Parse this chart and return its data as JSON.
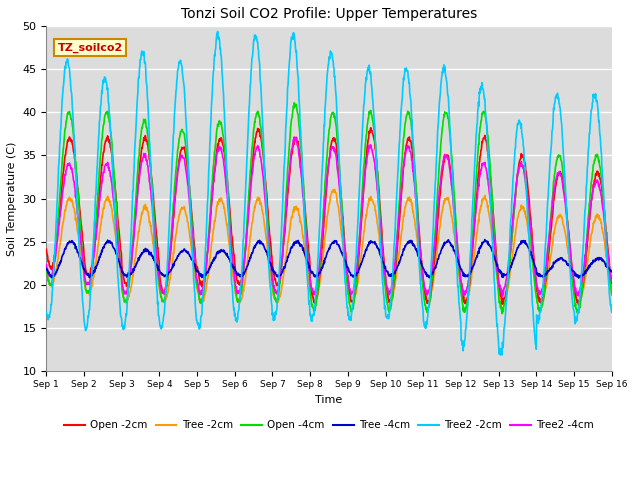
{
  "title": "Tonzi Soil CO2 Profile: Upper Temperatures",
  "xlabel": "Time",
  "ylabel": "Soil Temperature (C)",
  "ylim": [
    10,
    50
  ],
  "xlim": [
    0,
    15
  ],
  "background_color": "#dcdcdc",
  "fig_background": "#ffffff",
  "grid_color": "#ffffff",
  "label_box_text": "TZ_soilco2",
  "label_box_facecolor": "#ffffcc",
  "label_box_edgecolor": "#cc8800",
  "label_box_textcolor": "#cc0000",
  "xtick_labels": [
    "Sep 1",
    "Sep 2",
    "Sep 3",
    "Sep 4",
    "Sep 5",
    "Sep 6",
    "Sep 7",
    "Sep 8",
    "Sep 9",
    "Sep 10",
    "Sep 11",
    "Sep 12",
    "Sep 13",
    "Sep 14",
    "Sep 15",
    "Sep 16"
  ],
  "series": {
    "Open -2cm": {
      "color": "#ff0000",
      "lw": 1.2
    },
    "Tree -2cm": {
      "color": "#ff9900",
      "lw": 1.2
    },
    "Open -4cm": {
      "color": "#00dd00",
      "lw": 1.2
    },
    "Tree -4cm": {
      "color": "#0000cc",
      "lw": 1.2
    },
    "Tree2 -2cm": {
      "color": "#00ccff",
      "lw": 1.2
    },
    "Tree2 -4cm": {
      "color": "#ff00ff",
      "lw": 1.2
    }
  },
  "open2_peaks": [
    37,
    37,
    37,
    36,
    37,
    38,
    37,
    37,
    38,
    37,
    35,
    37,
    35,
    33,
    33
  ],
  "open2_lows": [
    22,
    21,
    20,
    19,
    20,
    20,
    20,
    18,
    18,
    18,
    18,
    18,
    18,
    18,
    18
  ],
  "tree2cm_peaks": [
    30,
    30,
    29,
    29,
    30,
    30,
    29,
    31,
    30,
    30,
    30,
    30,
    29,
    28,
    28
  ],
  "tree2cm_lows": [
    20,
    19,
    18,
    18,
    18,
    18,
    18,
    18,
    18,
    18,
    18,
    18,
    18,
    18,
    18
  ],
  "open4_peaks": [
    40,
    40,
    39,
    38,
    39,
    40,
    41,
    40,
    40,
    40,
    40,
    40,
    34,
    35,
    35
  ],
  "open4_lows": [
    20,
    19,
    18,
    18,
    18,
    18,
    18,
    17,
    17,
    17,
    17,
    17,
    17,
    17,
    17
  ],
  "tree4_peaks": [
    25,
    25,
    24,
    24,
    24,
    25,
    25,
    25,
    25,
    25,
    25,
    25,
    25,
    23,
    23
  ],
  "tree4_lows": [
    21,
    21,
    21,
    21,
    21,
    21,
    21,
    21,
    21,
    21,
    21,
    21,
    21,
    21,
    21
  ],
  "tree2_2cm_peaks": [
    46,
    44,
    47,
    46,
    49,
    49,
    49,
    47,
    45,
    45,
    45,
    43,
    39,
    42,
    42
  ],
  "tree2_2cm_lows": [
    16,
    15,
    15,
    15,
    15,
    16,
    16,
    16,
    16,
    16,
    15,
    13,
    12,
    16,
    16
  ],
  "tree2_4cm_peaks": [
    34,
    34,
    35,
    35,
    36,
    36,
    37,
    36,
    36,
    36,
    35,
    34,
    34,
    33,
    32
  ],
  "tree2_4cm_lows": [
    21,
    20,
    19,
    19,
    19,
    19,
    19,
    19,
    19,
    19,
    19,
    19,
    19,
    19,
    19
  ]
}
